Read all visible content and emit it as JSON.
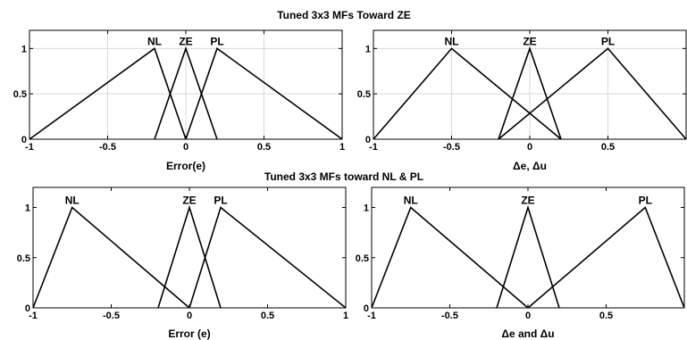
{
  "titles": {
    "top": "Tuned 3x3 MFs Toward ZE",
    "bottom": "Tuned 3x3 MFs toward NL & PL"
  },
  "chart_data": [
    {
      "type": "line",
      "xlabel": "Error(e)",
      "xlim": [
        -1,
        1
      ],
      "ylim": [
        0,
        1.2
      ],
      "xticks": [
        "-1",
        "-0.5",
        "0",
        "0.5",
        "1"
      ],
      "yticks": [
        "0",
        "0.5",
        "1"
      ],
      "grid": true,
      "series": [
        {
          "name": "NL",
          "x": [
            -1,
            -0.2,
            0
          ],
          "y": [
            0,
            1,
            0
          ]
        },
        {
          "name": "ZE",
          "x": [
            -0.2,
            0,
            0.2
          ],
          "y": [
            0,
            1,
            0
          ]
        },
        {
          "name": "PL",
          "x": [
            0,
            0.2,
            1
          ],
          "y": [
            0,
            1,
            0
          ]
        }
      ]
    },
    {
      "type": "line",
      "xlabel": "Δe, Δu",
      "xlim": [
        -1,
        1
      ],
      "ylim": [
        0,
        1.2
      ],
      "xticks": [
        "-1",
        "-0.5",
        "0",
        "0.5"
      ],
      "yticks": [
        "0",
        "0.5",
        "1"
      ],
      "grid": true,
      "series": [
        {
          "name": "NL",
          "x": [
            -1,
            -0.5,
            0.2
          ],
          "y": [
            0,
            1,
            0
          ]
        },
        {
          "name": "ZE",
          "x": [
            -0.2,
            0,
            0.2
          ],
          "y": [
            0,
            1,
            0
          ]
        },
        {
          "name": "PL",
          "x": [
            -0.2,
            0.5,
            1
          ],
          "y": [
            0,
            1,
            0
          ]
        }
      ]
    },
    {
      "type": "line",
      "xlabel": "Error (e)",
      "xlim": [
        -1,
        1
      ],
      "ylim": [
        0,
        1.2
      ],
      "xticks": [
        "-1",
        "-0.5",
        "0",
        "0.5",
        "1"
      ],
      "yticks": [
        "0",
        "0.5",
        "1"
      ],
      "grid": false,
      "series": [
        {
          "name": "NL",
          "x": [
            -1,
            -0.75,
            0
          ],
          "y": [
            0,
            1,
            0
          ]
        },
        {
          "name": "ZE",
          "x": [
            -0.2,
            0,
            0.2
          ],
          "y": [
            0,
            1,
            0
          ]
        },
        {
          "name": "PL",
          "x": [
            0,
            0.2,
            1
          ],
          "y": [
            0,
            1,
            0
          ]
        }
      ]
    },
    {
      "type": "line",
      "xlabel": "Δe and Δu",
      "xlim": [
        -1,
        1
      ],
      "ylim": [
        0,
        1.2
      ],
      "xticks": [
        "-1",
        "-0.5",
        "0",
        "0.5"
      ],
      "yticks": [
        "0",
        "0.5",
        "1"
      ],
      "grid": false,
      "series": [
        {
          "name": "NL",
          "x": [
            -1,
            -0.75,
            0
          ],
          "y": [
            0,
            1,
            0
          ]
        },
        {
          "name": "ZE",
          "x": [
            -0.2,
            0,
            0.2
          ],
          "y": [
            0,
            1,
            0
          ]
        },
        {
          "name": "PL",
          "x": [
            0,
            0.75,
            1
          ],
          "y": [
            0,
            1,
            0
          ]
        }
      ]
    }
  ]
}
